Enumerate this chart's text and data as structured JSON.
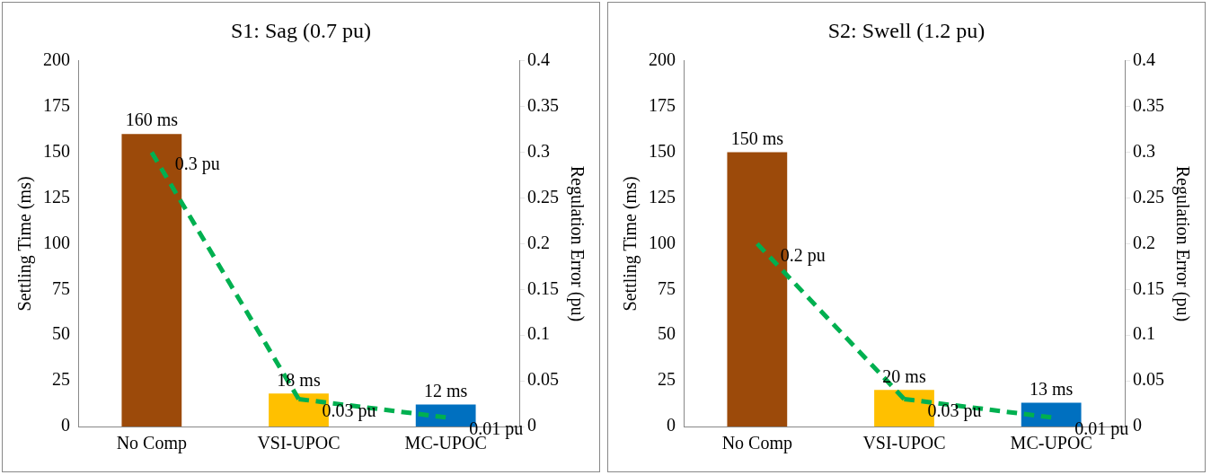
{
  "chart_data": [
    {
      "type": "bar",
      "title": "S1: Sag (0.7 pu)",
      "categories": [
        "No Comp",
        "VSI-UPOC",
        "MC-UPOC"
      ],
      "ylabel": "Settling Time (ms)",
      "y2label": "Regulation Error (pu)",
      "ylim": [
        0,
        200
      ],
      "yticks": [
        0,
        25,
        50,
        75,
        100,
        125,
        150,
        175,
        200
      ],
      "y2lim": [
        0,
        0.4
      ],
      "y2ticks": [
        0,
        0.05,
        0.1,
        0.15,
        0.2,
        0.25,
        0.3,
        0.35,
        0.4
      ],
      "grid": false,
      "legend": false,
      "marker": "none",
      "series": [
        {
          "colors": [
            "#9c4a0a",
            "#ffc000",
            "#0070c0"
          ],
          "values": [
            160,
            18,
            12
          ],
          "value_labels": [
            "160 ms",
            "18 ms",
            "12 ms"
          ]
        },
        {
          "type": "line",
          "axis": "y2",
          "color": "#00b050",
          "line_style": "dashed",
          "values": [
            0.3,
            0.03,
            0.01
          ],
          "value_labels": [
            "0.3 pu",
            "0.03 pu",
            "0.01 pu"
          ]
        }
      ]
    },
    {
      "type": "bar",
      "title": "S2: Swell (1.2 pu)",
      "categories": [
        "No Comp",
        "VSI-UPOC",
        "MC-UPOC"
      ],
      "ylabel": "Settling Time (ms)",
      "y2label": "Regulation Error (pu)",
      "ylim": [
        0,
        200
      ],
      "yticks": [
        0,
        25,
        50,
        75,
        100,
        125,
        150,
        175,
        200
      ],
      "y2lim": [
        0,
        0.4
      ],
      "y2ticks": [
        0,
        0.05,
        0.1,
        0.15,
        0.2,
        0.25,
        0.3,
        0.35,
        0.4
      ],
      "grid": false,
      "legend": false,
      "marker": "none",
      "series": [
        {
          "colors": [
            "#9c4a0a",
            "#ffc000",
            "#0070c0"
          ],
          "values": [
            150,
            20,
            13
          ],
          "value_labels": [
            "150 ms",
            "20 ms",
            "13 ms"
          ]
        },
        {
          "type": "line",
          "axis": "y2",
          "color": "#00b050",
          "line_style": "dashed",
          "values": [
            0.2,
            0.03,
            0.01
          ],
          "value_labels": [
            "0.2 pu",
            "0.03 pu",
            "0.01 pu"
          ]
        }
      ]
    }
  ]
}
